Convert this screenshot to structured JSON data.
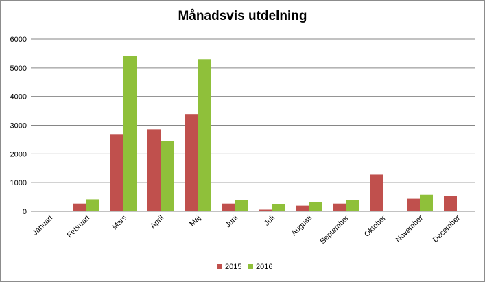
{
  "chart_data": {
    "type": "bar",
    "title": "Månadsvis utdelning",
    "categories": [
      "Januari",
      "Februari",
      "Mars",
      "April",
      "Maj",
      "Juni",
      "Juli",
      "Augusti",
      "September",
      "Oktober",
      "November",
      "December"
    ],
    "series": [
      {
        "name": "2015",
        "color": "#c0504d",
        "values": [
          0,
          270,
          2670,
          2860,
          3390,
          270,
          60,
          200,
          270,
          1280,
          440,
          540
        ]
      },
      {
        "name": "2016",
        "color": "#8fc03a",
        "values": [
          0,
          420,
          5420,
          2460,
          5300,
          390,
          250,
          320,
          390,
          0,
          580,
          0
        ]
      }
    ],
    "y_ticks": [
      "0",
      "1000",
      "2000",
      "3000",
      "4000",
      "5000",
      "6000"
    ],
    "ylim": [
      0,
      6000
    ],
    "grid": true,
    "legend_position": "bottom"
  }
}
